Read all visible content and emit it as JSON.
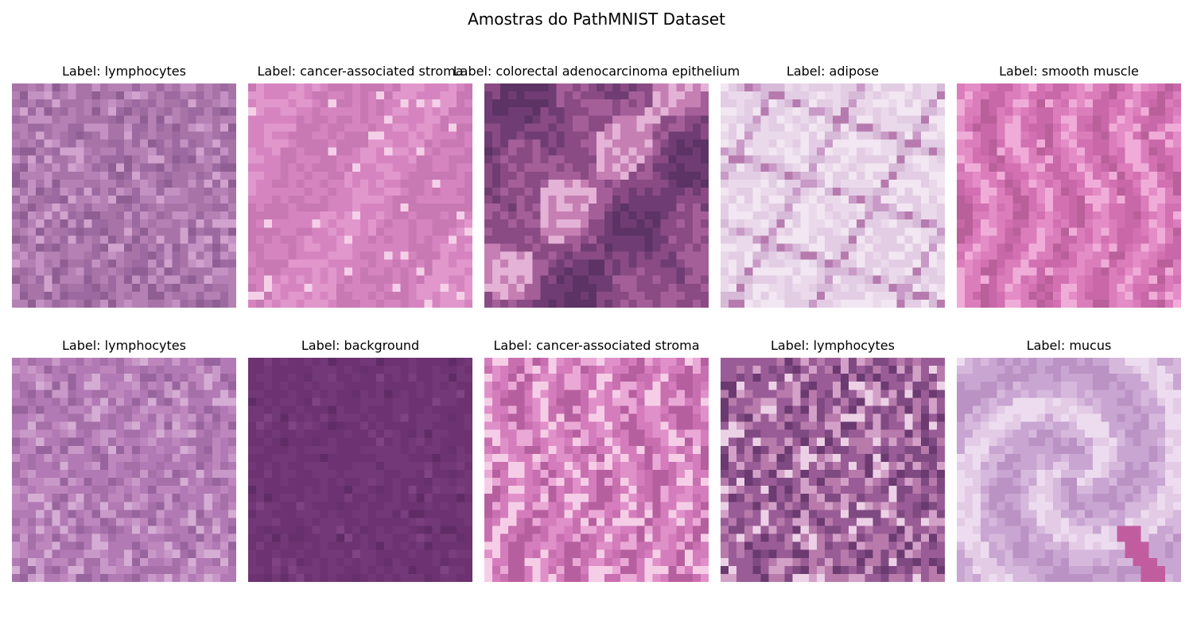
{
  "figure": {
    "title": "Amostras do PathMNIST Dataset"
  },
  "samples": [
    {
      "label": "Label: lymphocytes",
      "palette": [
        "#a874a8",
        "#b580b4",
        "#9c6aa0",
        "#c391c2",
        "#8f5f94",
        "#d0a2cd"
      ],
      "seed": 11,
      "texture": "speckle"
    },
    {
      "label": "Label: cancer-associated stroma",
      "palette": [
        "#d684c0",
        "#e197cc",
        "#c878b3",
        "#eaa9d6",
        "#bf6ea9",
        "#f4d0e7"
      ],
      "seed": 23,
      "texture": "smooth"
    },
    {
      "label": "Label: colorectal adenocarcinoma epithelium",
      "palette": [
        "#8a4b84",
        "#a45f99",
        "#6f3d73",
        "#c67fb3",
        "#5c3364",
        "#e3b2d6"
      ],
      "seed": 37,
      "texture": "blobs"
    },
    {
      "label": "Label: adipose",
      "palette": [
        "#ead9ea",
        "#e2cde4",
        "#f1e6f1",
        "#d7b9d8",
        "#c999c7",
        "#b77aae"
      ],
      "seed": 41,
      "texture": "network"
    },
    {
      "label": "Label: smooth muscle",
      "palette": [
        "#dc7dbb",
        "#d270b2",
        "#e48cc6",
        "#c868a8",
        "#b95f99",
        "#f0acd8"
      ],
      "seed": 53,
      "texture": "streaks"
    },
    {
      "label": "Label: lymphocytes",
      "palette": [
        "#b27ab4",
        "#bd87bd",
        "#a56fa8",
        "#c899c8",
        "#98649d",
        "#d5acd4"
      ],
      "seed": 67,
      "texture": "speckle"
    },
    {
      "label": "Label: background",
      "palette": [
        "#6d3272",
        "#733877",
        "#66306c",
        "#7a3e7f",
        "#5f2c66",
        "#804484"
      ],
      "seed": 79,
      "texture": "flat"
    },
    {
      "label": "Label: cancer-associated stroma",
      "palette": [
        "#d57dbc",
        "#c86fb0",
        "#e090c9",
        "#b65f9e",
        "#eaa8d6",
        "#f5cde7"
      ],
      "seed": 83,
      "texture": "streaks"
    },
    {
      "label": "Label: lymphocytes",
      "palette": [
        "#9a5c96",
        "#b77aab",
        "#7f4a81",
        "#d3a0c8",
        "#6b3a70",
        "#ecd1e6"
      ],
      "seed": 97,
      "texture": "speckle"
    },
    {
      "label": "Label: mucus",
      "palette": [
        "#d6b8dc",
        "#c9a5d2",
        "#e3cbe6",
        "#bb92c4",
        "#eddcef",
        "#c15d9f"
      ],
      "seed": 101,
      "texture": "swirl"
    }
  ]
}
